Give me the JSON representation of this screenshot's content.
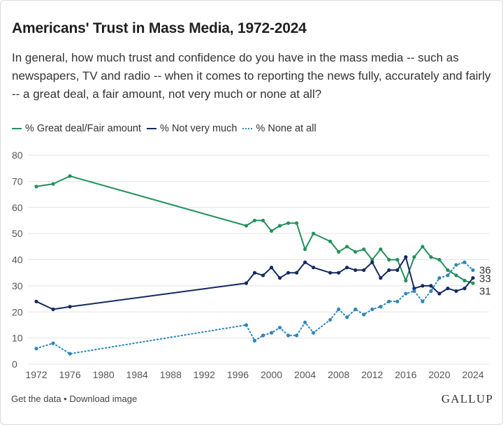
{
  "title": "Americans' Trust in Mass Media, 1972-2024",
  "subtitle": "In general, how much trust and confidence do you have in the mass media -- such as newspapers, TV and radio -- when it comes to reporting the news fully, accurately and fairly -- a great deal, a fair amount, not very much or none at all?",
  "footer": {
    "get_data": "Get the data",
    "separator": " • ",
    "download": "Download image",
    "logo": "GALLUP"
  },
  "colors": {
    "great_deal": "#23915a",
    "not_very_much": "#13295f",
    "none_at_all": "#2f86bb",
    "grid": "#e3e3e3",
    "axis_text": "#555555"
  },
  "chart_data": {
    "type": "line",
    "title": "Americans' Trust in Mass Media, 1972-2024",
    "xlabel": "",
    "ylabel": "",
    "xlim": [
      1972,
      2024
    ],
    "ylim": [
      0,
      80
    ],
    "x_ticks": [
      1972,
      1976,
      1980,
      1984,
      1988,
      1992,
      1996,
      2000,
      2004,
      2008,
      2012,
      2016,
      2020,
      2024
    ],
    "y_ticks": [
      0,
      10,
      20,
      30,
      40,
      50,
      60,
      70,
      80
    ],
    "grid": "horizontal",
    "legend_position": "top-left",
    "series": [
      {
        "name": "% Great deal/Fair amount",
        "style": "solid",
        "end_label": "31",
        "points": [
          [
            1972,
            68
          ],
          [
            1974,
            69
          ],
          [
            1976,
            72
          ],
          [
            1997,
            53
          ],
          [
            1998,
            55
          ],
          [
            1999,
            55
          ],
          [
            2000,
            51
          ],
          [
            2001,
            53
          ],
          [
            2002,
            54
          ],
          [
            2003,
            54
          ],
          [
            2004,
            44
          ],
          [
            2005,
            50
          ],
          [
            2007,
            47
          ],
          [
            2008,
            43
          ],
          [
            2009,
            45
          ],
          [
            2010,
            43
          ],
          [
            2011,
            44
          ],
          [
            2012,
            40
          ],
          [
            2013,
            44
          ],
          [
            2014,
            40
          ],
          [
            2015,
            40
          ],
          [
            2016,
            32
          ],
          [
            2017,
            41
          ],
          [
            2018,
            45
          ],
          [
            2019,
            41
          ],
          [
            2020,
            40
          ],
          [
            2021,
            36
          ],
          [
            2022,
            34
          ],
          [
            2023,
            32
          ],
          [
            2024,
            31
          ]
        ]
      },
      {
        "name": "% Not very much",
        "style": "solid",
        "end_label": "33",
        "points": [
          [
            1972,
            24
          ],
          [
            1974,
            21
          ],
          [
            1976,
            22
          ],
          [
            1997,
            31
          ],
          [
            1998,
            35
          ],
          [
            1999,
            34
          ],
          [
            2000,
            37
          ],
          [
            2001,
            33
          ],
          [
            2002,
            35
          ],
          [
            2003,
            35
          ],
          [
            2004,
            39
          ],
          [
            2005,
            37
          ],
          [
            2007,
            35
          ],
          [
            2008,
            35
          ],
          [
            2009,
            37
          ],
          [
            2010,
            36
          ],
          [
            2011,
            36
          ],
          [
            2012,
            39
          ],
          [
            2013,
            33
          ],
          [
            2014,
            36
          ],
          [
            2015,
            36
          ],
          [
            2016,
            41
          ],
          [
            2017,
            29
          ],
          [
            2018,
            30
          ],
          [
            2019,
            30
          ],
          [
            2020,
            27
          ],
          [
            2021,
            29
          ],
          [
            2022,
            28
          ],
          [
            2023,
            29
          ],
          [
            2024,
            33
          ]
        ]
      },
      {
        "name": "% None at all",
        "style": "dotted",
        "end_label": "36",
        "points": [
          [
            1972,
            6
          ],
          [
            1974,
            8
          ],
          [
            1976,
            4
          ],
          [
            1997,
            15
          ],
          [
            1998,
            9
          ],
          [
            1999,
            11
          ],
          [
            2000,
            12
          ],
          [
            2001,
            14
          ],
          [
            2002,
            11
          ],
          [
            2003,
            11
          ],
          [
            2004,
            16
          ],
          [
            2005,
            12
          ],
          [
            2007,
            17
          ],
          [
            2008,
            21
          ],
          [
            2009,
            18
          ],
          [
            2010,
            21
          ],
          [
            2011,
            19
          ],
          [
            2012,
            21
          ],
          [
            2013,
            22
          ],
          [
            2014,
            24
          ],
          [
            2015,
            24
          ],
          [
            2016,
            27
          ],
          [
            2017,
            28
          ],
          [
            2018,
            24
          ],
          [
            2019,
            28
          ],
          [
            2020,
            33
          ],
          [
            2021,
            34
          ],
          [
            2022,
            38
          ],
          [
            2023,
            39
          ],
          [
            2024,
            36
          ]
        ]
      }
    ]
  }
}
